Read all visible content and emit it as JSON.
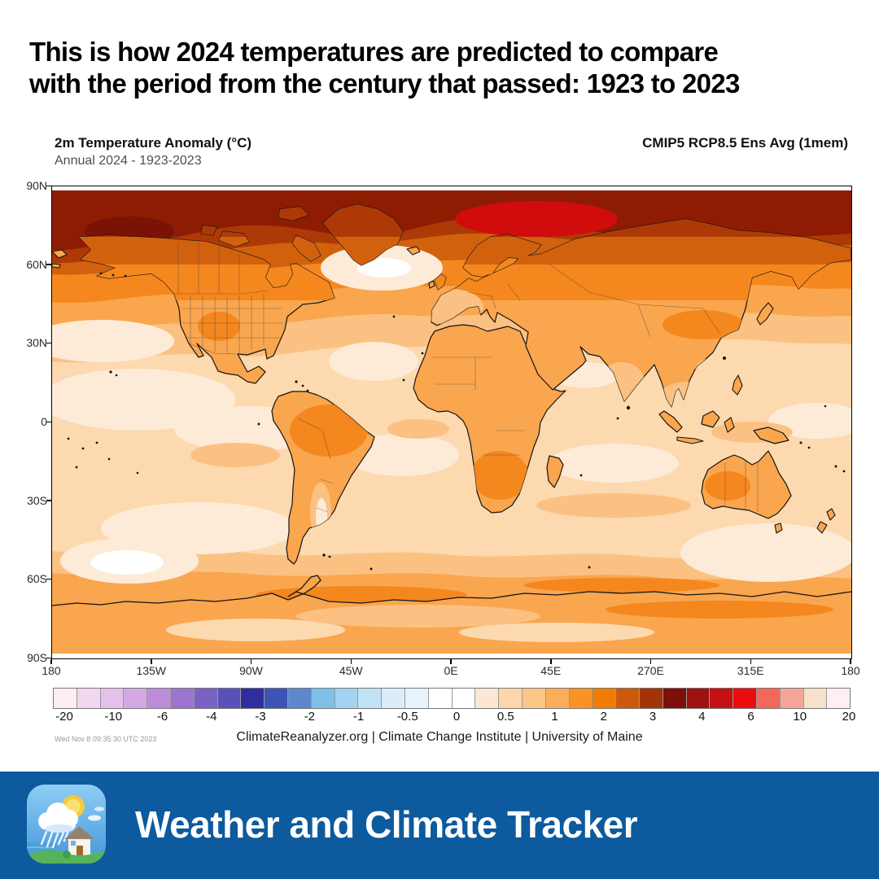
{
  "headline": {
    "line1": "This is how 2024 temperatures are predicted to compare",
    "line2": "with the period from the century that passed: 1923 to 2023"
  },
  "map": {
    "title_left": "2m Temperature Anomaly (°C)",
    "subtitle_left": "Annual 2024 - 1923-2023",
    "title_right": "CMIP5 RCP8.5 Ens Avg (1mem)",
    "lat_labels": [
      "90N",
      "60N",
      "30N",
      "0",
      "30S",
      "60S",
      "90S"
    ],
    "lon_labels": [
      "180",
      "135W",
      "90W",
      "45W",
      "0E",
      "45E",
      "270E",
      "315E",
      "180"
    ],
    "timestamp": "Wed Nov 8 09:35:30 UTC 2023",
    "attribution": "ClimateReanalyzer.org | Climate Change Institute | University of Maine"
  },
  "colorbar": {
    "tick_labels": [
      "-20",
      "-10",
      "-6",
      "-4",
      "-3",
      "-2",
      "-1",
      "-0.5",
      "0",
      "0.5",
      "1",
      "2",
      "3",
      "4",
      "6",
      "10",
      "20"
    ],
    "cell_colors": [
      "#fdeef4",
      "#f2d7f0",
      "#e2c1ea",
      "#d3a8e3",
      "#bf8cdb",
      "#9b74cf",
      "#7a62c5",
      "#5a50ba",
      "#2e2ea0",
      "#3c55b5",
      "#5d88cd",
      "#7fc0ea",
      "#a3d3f0",
      "#c2e2f6",
      "#dcedf9",
      "#e8f3fb",
      "#ffffff",
      "#ffffff",
      "#fbe7d4",
      "#fbd7ab",
      "#fcc687",
      "#fbad58",
      "#fb9227",
      "#f07c03",
      "#cc5a0c",
      "#a33407",
      "#7f0f0a",
      "#9d1111",
      "#c51113",
      "#e90d0d",
      "#f4685c",
      "#f3a698",
      "#f9e0ca",
      "#fdeff2"
    ]
  },
  "footer": {
    "app_name": "Weather and Climate Tracker",
    "banner_color": "#0d5a9e"
  },
  "chart_data": {
    "type": "heatmap",
    "subtype": "global-temperature-anomaly-map",
    "title": "2m Temperature Anomaly (°C)",
    "subtitle": "Annual 2024 - 1923-2023",
    "model_label": "CMIP5 RCP8.5 Ens Avg (1mem)",
    "projection": "equirectangular world map, 180W-180E, 90N-90S",
    "x_tick_labels": [
      "180",
      "135W",
      "90W",
      "45W",
      "0E",
      "45E",
      "270E",
      "315E",
      "180"
    ],
    "y_tick_labels": [
      "90N",
      "60N",
      "30N",
      "0",
      "30S",
      "60S",
      "90S"
    ],
    "colorbar_levels_c": [
      -20,
      -10,
      -6,
      -4,
      -3,
      -2,
      -1,
      -0.5,
      0,
      0.5,
      1,
      2,
      3,
      4,
      6,
      10,
      20
    ],
    "units": "°C",
    "legend_position": "bottom",
    "grid": false,
    "approx_anomaly_by_latitude": [
      {
        "lat_band": "90N-78N",
        "anomaly_c": "4 to 6"
      },
      {
        "lat_band": "78N-65N",
        "anomaly_c": "3 to 4"
      },
      {
        "lat_band": "65N-55N",
        "anomaly_c": "2 to 3"
      },
      {
        "lat_band": "55N-40N",
        "anomaly_c": "1 to 2"
      },
      {
        "lat_band": "40N-45S",
        "anomaly_c": "0.5 to 1 (patches near 0 over oceans)"
      },
      {
        "lat_band": "45S-70S",
        "anomaly_c": "0.5 to 2 (white patch ~0 in S Pacific)"
      },
      {
        "lat_band": "Antarctica",
        "anomaly_c": "1 to 2"
      }
    ],
    "hotspots": [
      {
        "region": "Arctic Ocean near Svalbard/Barents Sea",
        "anomaly_c": "6 to 10"
      },
      {
        "region": "Arctic basin band",
        "anomaly_c": "4 to 6"
      }
    ],
    "cold_spots": [
      {
        "region": "North Atlantic south of Greenland",
        "anomaly_c": "~0"
      },
      {
        "region": "Southern Pacific ~55S 150W",
        "anomaly_c": "~0"
      }
    ]
  }
}
